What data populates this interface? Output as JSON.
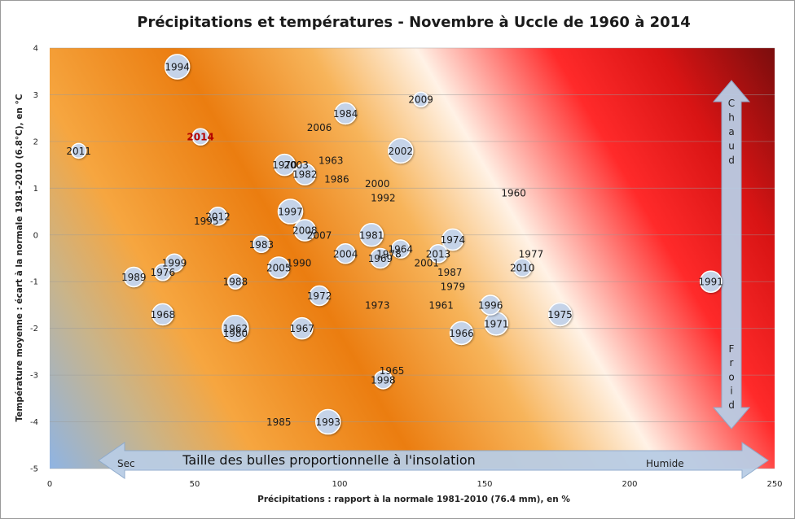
{
  "chart_data": {
    "type": "scatter",
    "title": "Précipitations et températures - Novembre à Uccle de 1960 à 2014",
    "xlabel": "Précipitations : rapport à la normale 1981-2010 (76.4 mm), en %",
    "ylabel": "Température moyenne : écart à la normale 1981-2010 (6.8°C), en °C",
    "xlim": [
      0,
      250
    ],
    "ylim": [
      -5,
      4
    ],
    "x_ticks": [
      "0",
      "50",
      "100",
      "150",
      "200",
      "250"
    ],
    "y_ticks": [
      "4",
      "3",
      "2",
      "1",
      "0",
      "-1",
      "-2",
      "-3",
      "-4",
      "-5"
    ],
    "grid": "horizontal",
    "highlight_label": "2014",
    "annotations": {
      "horizontal_arrow_text": "Taille des bulles proportionnelle à l'insolation",
      "dry_label": "Sec",
      "wet_label": "Humide",
      "hot_label": "Chaud",
      "cold_label": "Froid"
    },
    "colors": {
      "bubble_fill": "#c5d3e8",
      "arrow_fill": "#b9cde5",
      "highlight": "#b30000",
      "gradient_dry_cold": "#8fb4e3",
      "gradient_mid": "#f08c1e",
      "gradient_light": "#fff2e6",
      "gradient_red": "#ff1a1a",
      "gradient_hot_wet": "#7a0d0d"
    },
    "points": [
      {
        "label": "1960",
        "x": 160,
        "y": 0.9,
        "size": 0
      },
      {
        "label": "1961",
        "x": 135,
        "y": -1.5,
        "size": 0
      },
      {
        "label": "1962",
        "x": 64,
        "y": -2.0,
        "size": 28
      },
      {
        "label": "1963",
        "x": 97,
        "y": 1.6,
        "size": 0
      },
      {
        "label": "1964",
        "x": 121,
        "y": -0.3,
        "size": 18
      },
      {
        "label": "1965",
        "x": 118,
        "y": -2.9,
        "size": 0
      },
      {
        "label": "1966",
        "x": 142,
        "y": -2.1,
        "size": 24
      },
      {
        "label": "1967",
        "x": 87,
        "y": -2.0,
        "size": 22
      },
      {
        "label": "1968",
        "x": 39,
        "y": -1.7,
        "size": 22
      },
      {
        "label": "1969",
        "x": 114,
        "y": -0.5,
        "size": 20
      },
      {
        "label": "1970",
        "x": 81,
        "y": 1.5,
        "size": 22
      },
      {
        "label": "1971",
        "x": 154,
        "y": -1.9,
        "size": 24
      },
      {
        "label": "1972",
        "x": 93,
        "y": -1.3,
        "size": 20
      },
      {
        "label": "1973",
        "x": 113,
        "y": -1.5,
        "size": 0
      },
      {
        "label": "1974",
        "x": 139,
        "y": -0.1,
        "size": 22
      },
      {
        "label": "1975",
        "x": 176,
        "y": -1.7,
        "size": 24
      },
      {
        "label": "1976",
        "x": 39,
        "y": -0.8,
        "size": 16
      },
      {
        "label": "1977",
        "x": 166,
        "y": -0.4,
        "size": 0
      },
      {
        "label": "1978",
        "x": 117,
        "y": -0.4,
        "size": 0
      },
      {
        "label": "1979",
        "x": 139,
        "y": -1.1,
        "size": 0
      },
      {
        "label": "1980",
        "x": 64,
        "y": -2.1,
        "size": 0
      },
      {
        "label": "1981",
        "x": 111,
        "y": 0.0,
        "size": 24
      },
      {
        "label": "1982",
        "x": 88,
        "y": 1.3,
        "size": 22
      },
      {
        "label": "1983",
        "x": 73,
        "y": -0.2,
        "size": 16
      },
      {
        "label": "1984",
        "x": 102,
        "y": 2.6,
        "size": 22
      },
      {
        "label": "1985",
        "x": 79,
        "y": -4.0,
        "size": 0
      },
      {
        "label": "1986",
        "x": 99,
        "y": 1.2,
        "size": 0
      },
      {
        "label": "1987",
        "x": 138,
        "y": -0.8,
        "size": 0
      },
      {
        "label": "1988",
        "x": 64,
        "y": -1.0,
        "size": 14
      },
      {
        "label": "1989",
        "x": 29,
        "y": -0.9,
        "size": 20
      },
      {
        "label": "1990",
        "x": 86,
        "y": -0.6,
        "size": 0
      },
      {
        "label": "1991",
        "x": 228,
        "y": -1.0,
        "size": 22
      },
      {
        "label": "1992",
        "x": 115,
        "y": 0.8,
        "size": 0
      },
      {
        "label": "1993",
        "x": 96,
        "y": -4.0,
        "size": 26
      },
      {
        "label": "1994",
        "x": 44,
        "y": 3.6,
        "size": 26
      },
      {
        "label": "1995",
        "x": 54,
        "y": 0.3,
        "size": 0
      },
      {
        "label": "1996",
        "x": 152,
        "y": -1.5,
        "size": 20
      },
      {
        "label": "1997",
        "x": 83,
        "y": 0.5,
        "size": 26
      },
      {
        "label": "1998",
        "x": 115,
        "y": -3.1,
        "size": 18
      },
      {
        "label": "1999",
        "x": 43,
        "y": -0.6,
        "size": 18
      },
      {
        "label": "2000",
        "x": 113,
        "y": 1.1,
        "size": 0
      },
      {
        "label": "2001",
        "x": 130,
        "y": -0.6,
        "size": 0
      },
      {
        "label": "2002",
        "x": 121,
        "y": 1.8,
        "size": 26
      },
      {
        "label": "2003",
        "x": 85,
        "y": 1.5,
        "size": 0
      },
      {
        "label": "2004",
        "x": 102,
        "y": -0.4,
        "size": 20
      },
      {
        "label": "2005",
        "x": 79,
        "y": -0.7,
        "size": 22
      },
      {
        "label": "2006",
        "x": 93,
        "y": 2.3,
        "size": 0
      },
      {
        "label": "2007",
        "x": 93,
        "y": 0.0,
        "size": 0
      },
      {
        "label": "2008",
        "x": 88,
        "y": 0.1,
        "size": 22
      },
      {
        "label": "2009",
        "x": 128,
        "y": 2.9,
        "size": 14
      },
      {
        "label": "2010",
        "x": 163,
        "y": -0.7,
        "size": 18
      },
      {
        "label": "2011",
        "x": 10,
        "y": 1.8,
        "size": 14
      },
      {
        "label": "2012",
        "x": 58,
        "y": 0.4,
        "size": 18
      },
      {
        "label": "2013",
        "x": 134,
        "y": -0.4,
        "size": 18
      },
      {
        "label": "2014",
        "x": 52,
        "y": 2.1,
        "size": 16
      }
    ]
  }
}
